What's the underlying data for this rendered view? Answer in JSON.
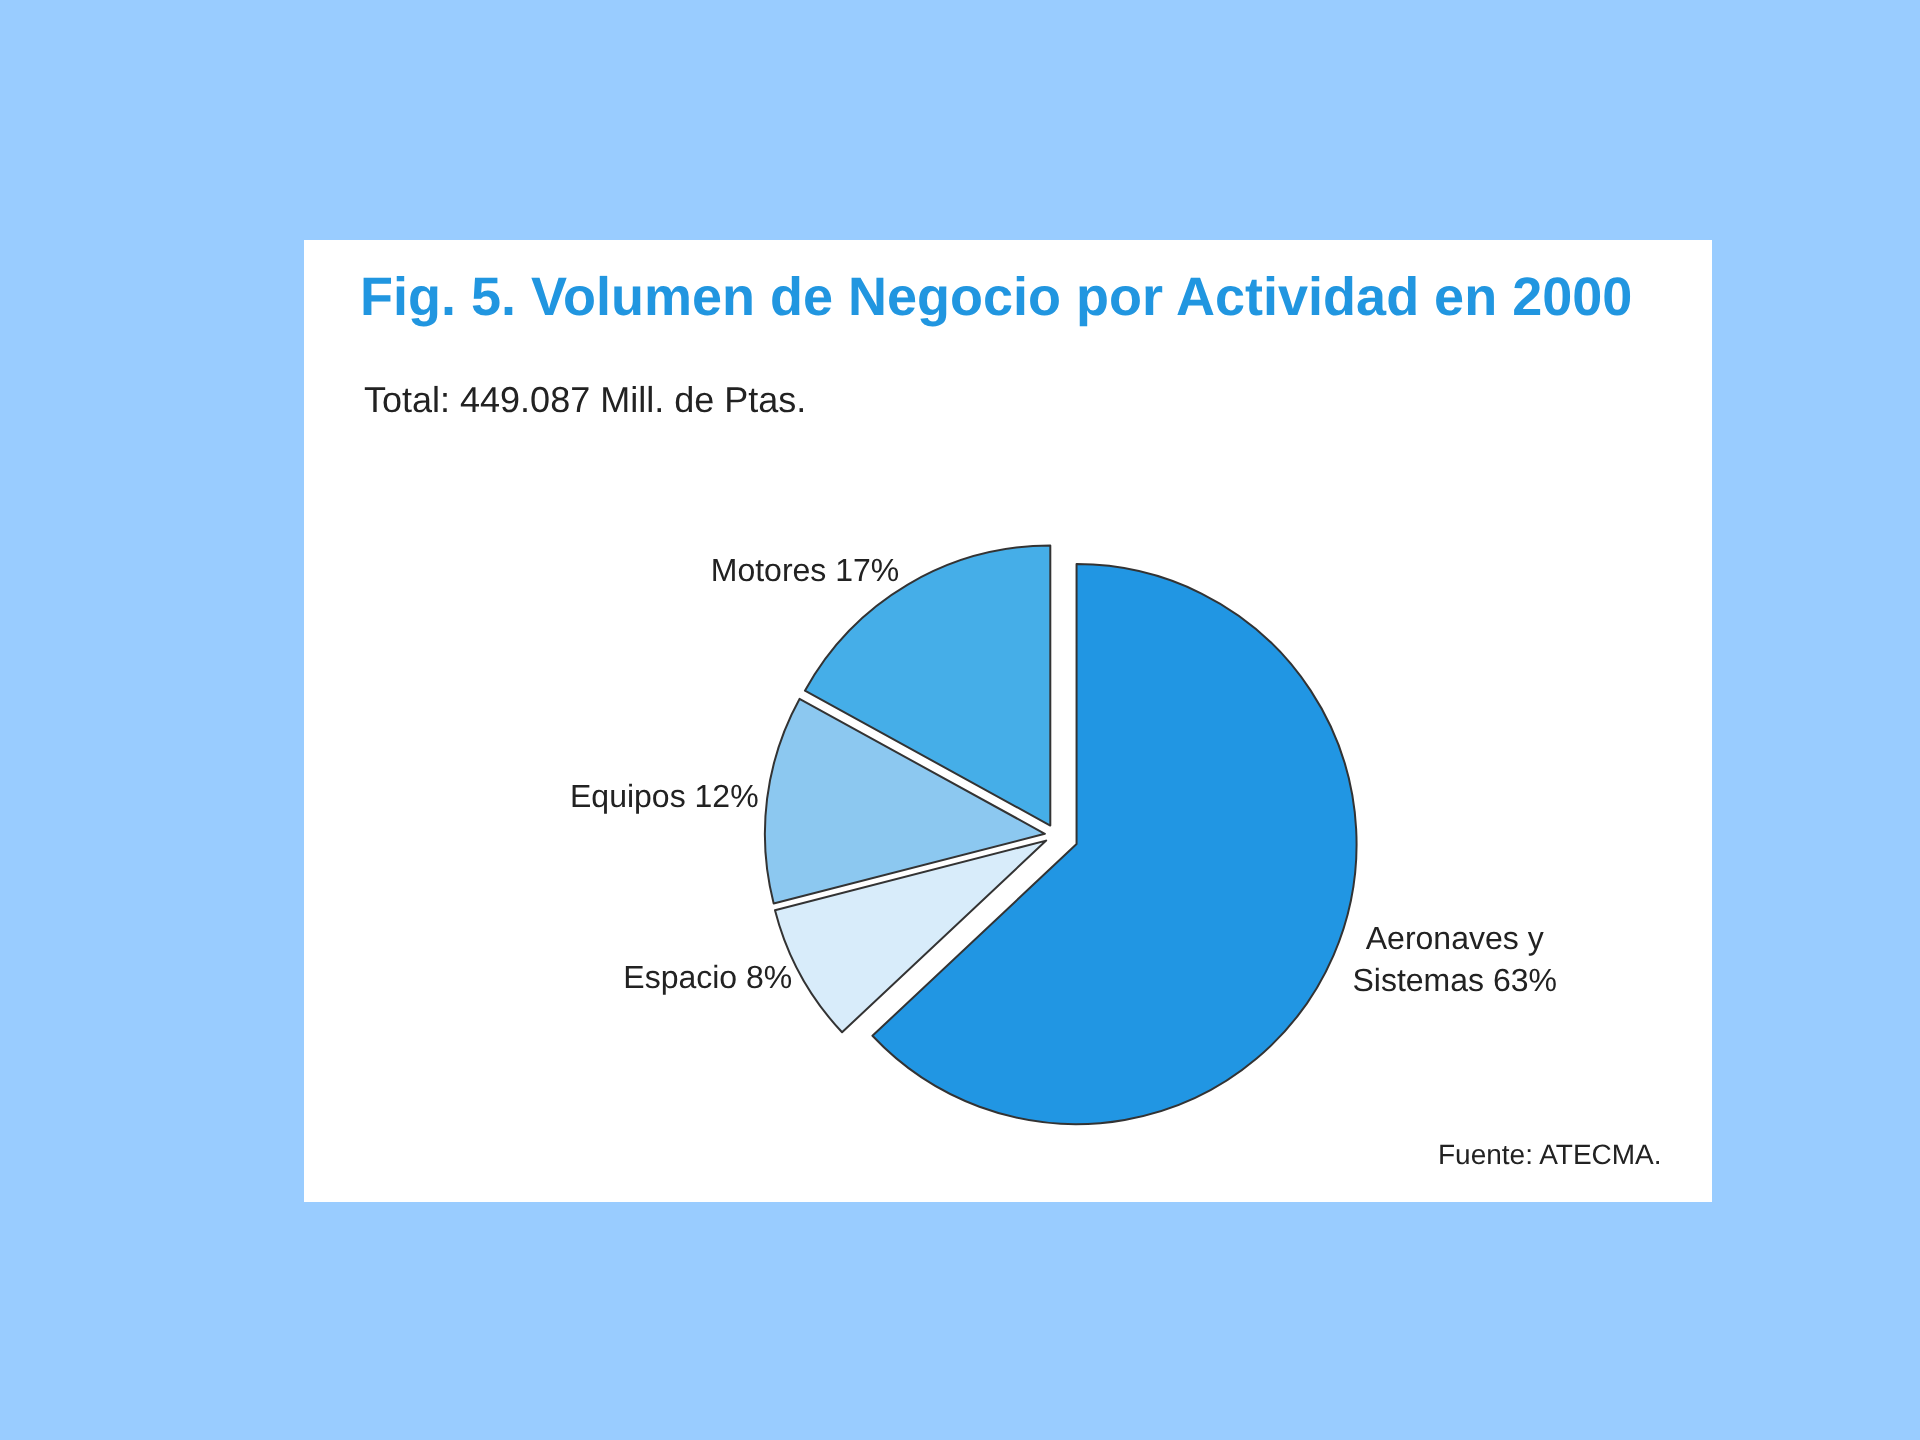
{
  "chart_data": {
    "type": "pie",
    "title": "Fig. 5. Volumen de Negocio por Actividad en 2000",
    "subtitle": "Total: 449.087 Mill. de Ptas.",
    "categories": [
      "Aeronaves y\nSistemas",
      "Espacio",
      "Equipos",
      "Motores"
    ],
    "values": [
      63,
      8,
      12,
      17
    ],
    "value_labels": [
      "63%",
      "8%",
      "12%",
      "17%"
    ],
    "colors": [
      "#2196e3",
      "#d8ecfa",
      "#8cc8f0",
      "#45aee8"
    ],
    "annotations": [
      "Fuente: ATECMA."
    ]
  }
}
